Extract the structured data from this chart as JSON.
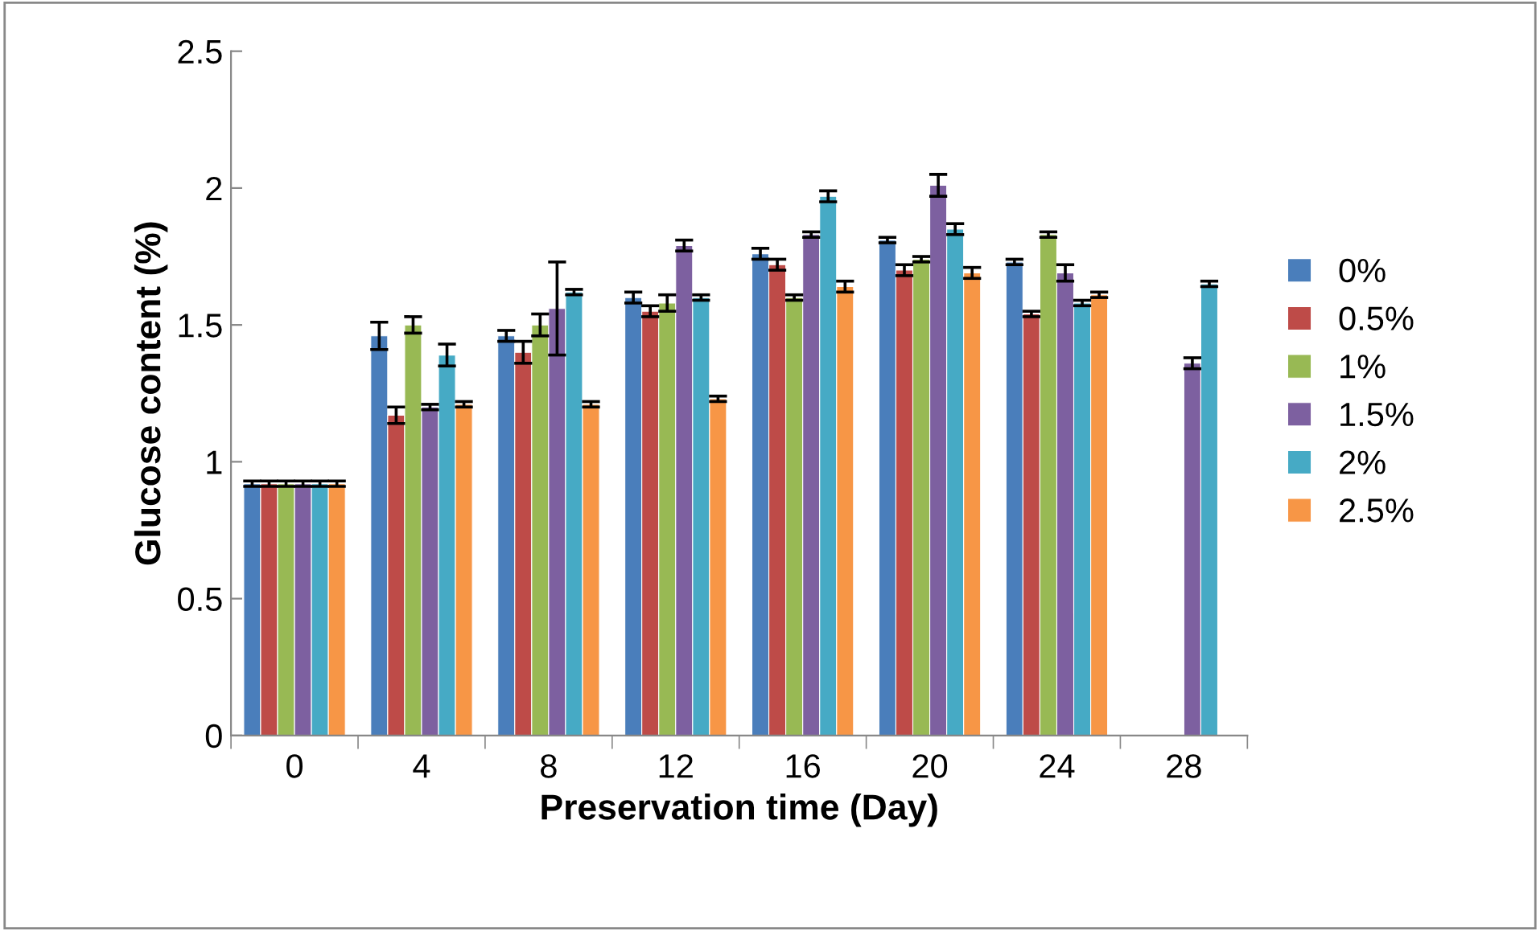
{
  "chart_data": {
    "type": "bar",
    "xlabel": "Preservation time (Day)",
    "ylabel": "Glucose content (%)",
    "categories": [
      "0",
      "4",
      "8",
      "12",
      "16",
      "20",
      "24",
      "28"
    ],
    "ylim": [
      0,
      2.5
    ],
    "yticks": [
      0,
      0.5,
      1,
      1.5,
      2,
      2.5
    ],
    "grid": false,
    "legend": "right",
    "series": [
      {
        "name": "0%",
        "color": "#4a7ebb",
        "values": [
          0.92,
          1.46,
          1.46,
          1.6,
          1.76,
          1.81,
          1.73,
          null
        ],
        "errors": [
          0.01,
          0.05,
          0.02,
          0.02,
          0.02,
          0.01,
          0.01,
          null
        ]
      },
      {
        "name": "0.5%",
        "color": "#be4b48",
        "values": [
          0.92,
          1.17,
          1.4,
          1.55,
          1.72,
          1.7,
          1.54,
          null
        ],
        "errors": [
          0.01,
          0.03,
          0.04,
          0.02,
          0.02,
          0.02,
          0.01,
          null
        ]
      },
      {
        "name": "1%",
        "color": "#98b954",
        "values": [
          0.92,
          1.5,
          1.5,
          1.58,
          1.6,
          1.74,
          1.83,
          null
        ],
        "errors": [
          0.01,
          0.03,
          0.04,
          0.03,
          0.01,
          0.01,
          0.01,
          null
        ]
      },
      {
        "name": "1.5%",
        "color": "#7d60a0",
        "values": [
          0.92,
          1.2,
          1.56,
          1.79,
          1.83,
          2.01,
          1.69,
          1.36
        ],
        "errors": [
          0.01,
          0.01,
          0.17,
          0.02,
          0.01,
          0.04,
          0.03,
          0.02
        ]
      },
      {
        "name": "2%",
        "color": "#46aac5",
        "values": [
          0.92,
          1.39,
          1.62,
          1.6,
          1.97,
          1.85,
          1.58,
          1.65
        ],
        "errors": [
          0.01,
          0.04,
          0.01,
          0.01,
          0.02,
          0.02,
          0.01,
          0.01
        ]
      },
      {
        "name": "2.5%",
        "color": "#f79646",
        "values": [
          0.92,
          1.21,
          1.21,
          1.23,
          1.64,
          1.69,
          1.61,
          null
        ],
        "errors": [
          0.01,
          0.01,
          0.01,
          0.01,
          0.02,
          0.02,
          0.01,
          null
        ]
      }
    ]
  }
}
